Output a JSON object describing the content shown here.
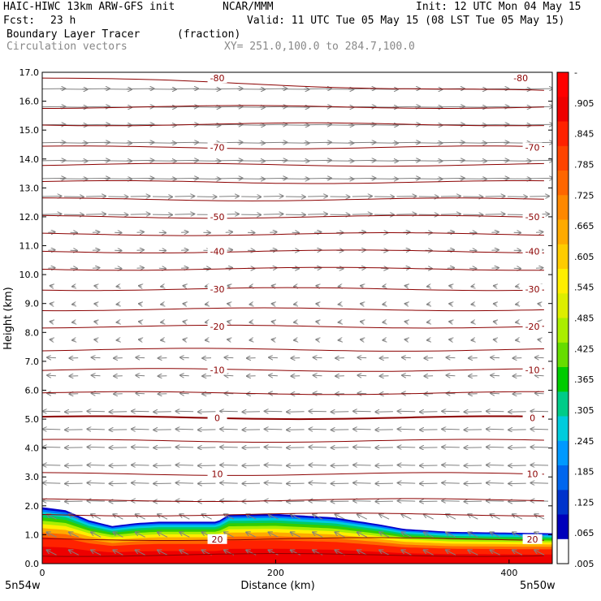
{
  "header": {
    "title_left": "HAIC-HIWC 13km ARW-GFS init",
    "org": "NCAR/MMM",
    "init": "Init: 12 UTC Mon 04 May 15",
    "fcst_label": "Fcst:",
    "fcst_value": "23 h",
    "valid": "Valid: 11 UTC Tue 05 May 15 (08 LST Tue 05 May 15)",
    "field_name": "Boundary Layer Tracer",
    "field_units": "(fraction)",
    "vectors_label": "Circulation vectors",
    "xy_range": "XY= 251.0,100.0 to 284.7,100.0"
  },
  "chart_data": {
    "type": "heatmap",
    "xlabel": "Distance (km)",
    "ylabel": "Height (km)",
    "xlim": [
      0,
      437
    ],
    "ylim": [
      0,
      17
    ],
    "x_ticks": [
      0,
      200,
      400
    ],
    "y_ticks": [
      "0.0",
      "1.0",
      "2.0",
      "3.0",
      "4.0",
      "5.0",
      "6.0",
      "7.0",
      "8.0",
      "9.0",
      "10.0",
      "11.0",
      "12.0",
      "13.0",
      "14.0",
      "15.0",
      "16.0",
      "17.0"
    ],
    "x_end_labels": {
      "left": "5n54w",
      "right": "5n50w"
    },
    "colorbar_labels": [
      "-",
      ".905",
      ".845",
      ".785",
      ".725",
      ".665",
      ".605",
      ".545",
      ".485",
      ".425",
      ".365",
      ".305",
      ".245",
      ".185",
      ".125",
      ".065",
      ".005"
    ],
    "colorbar_colors": [
      "#ff0000",
      "#ee0000",
      "#ff2200",
      "#ff4400",
      "#ff6600",
      "#ff8800",
      "#ffaa00",
      "#ffcc00",
      "#ffee00",
      "#ddee00",
      "#aaee00",
      "#66dd00",
      "#00cc00",
      "#00cc88",
      "#00ccdd",
      "#0099ff",
      "#0066ee",
      "#0033cc",
      "#0000bb",
      "#ffffff"
    ],
    "tracer_top_km": [
      [
        0,
        1.95
      ],
      [
        20,
        1.85
      ],
      [
        40,
        1.5
      ],
      [
        60,
        1.3
      ],
      [
        80,
        1.4
      ],
      [
        100,
        1.45
      ],
      [
        150,
        1.45
      ],
      [
        160,
        1.7
      ],
      [
        200,
        1.72
      ],
      [
        250,
        1.6
      ],
      [
        290,
        1.35
      ],
      [
        310,
        1.2
      ],
      [
        350,
        1.1
      ],
      [
        437,
        1.05
      ]
    ],
    "isotherms_c": [
      {
        "label": "-80",
        "h": 16.8
      },
      {
        "label": "-70",
        "h": 14.4
      },
      {
        "label": "-50",
        "h": 12.0
      },
      {
        "label": "-40",
        "h": 10.8
      },
      {
        "label": "-30",
        "h": 9.5
      },
      {
        "label": "-20",
        "h": 8.2
      },
      {
        "label": "-10",
        "h": 6.7
      },
      {
        "label": "0",
        "h": 5.05
      },
      {
        "label": "10",
        "h": 3.1
      },
      {
        "label": "20",
        "h": 0.85
      }
    ],
    "contour_color": "#8b0000",
    "vector_color": "#808080"
  }
}
